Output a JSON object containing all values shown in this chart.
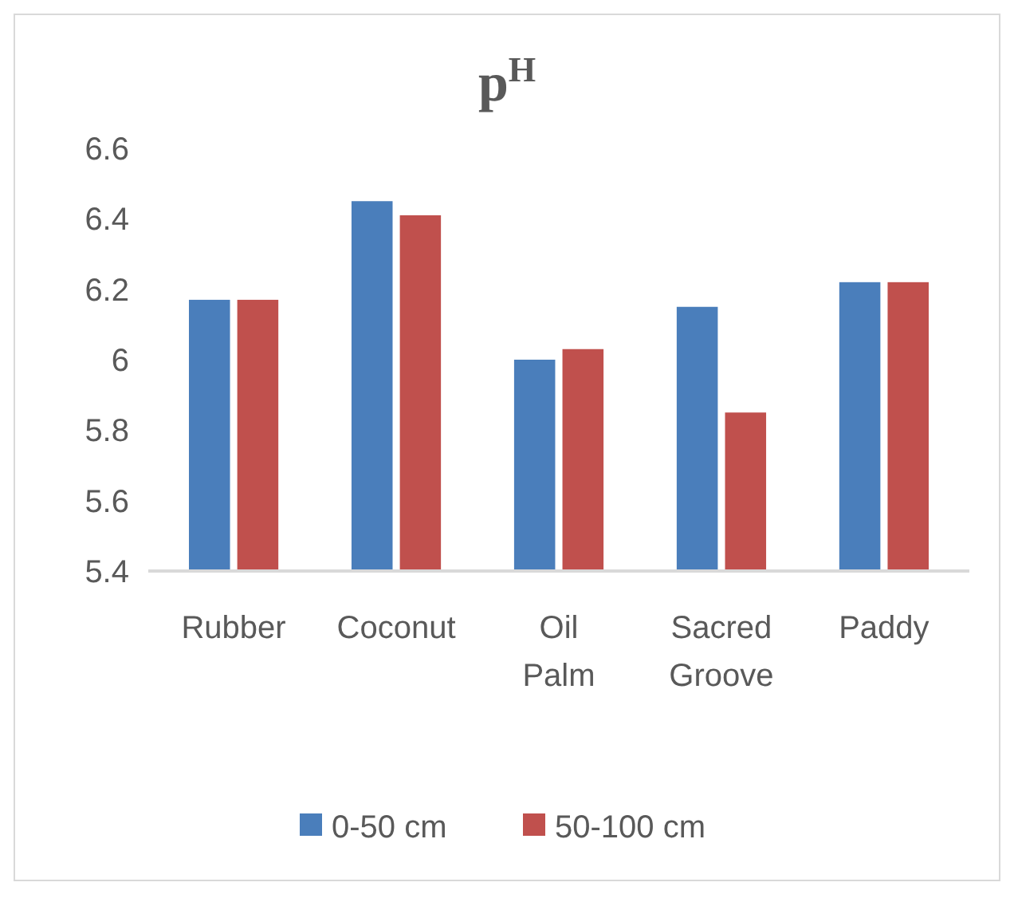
{
  "chart_data": {
    "type": "bar",
    "title": "p$^{H}$",
    "categories": [
      "Rubber",
      "Coconut",
      "Oil Palm",
      "Sacred Groove",
      "Paddy"
    ],
    "series": [
      {
        "name": "0-50 cm",
        "color": "#4a7ebb",
        "values": [
          6.17,
          6.45,
          6.0,
          6.15,
          6.22
        ]
      },
      {
        "name": "50-100 cm",
        "color": "#c0504d",
        "values": [
          6.17,
          6.41,
          6.03,
          5.85,
          6.22
        ]
      }
    ],
    "ylim": [
      5.4,
      6.6
    ],
    "yticks": [
      {
        "value": 5.4,
        "label": "5.4"
      },
      {
        "value": 5.6,
        "label": "5.6"
      },
      {
        "value": 5.8,
        "label": "5.8"
      },
      {
        "value": 6,
        "label": "6"
      },
      {
        "value": 6.2,
        "label": "6.2"
      },
      {
        "value": 6.4,
        "label": "6.4"
      },
      {
        "value": 6.6,
        "label": "6.6"
      }
    ],
    "grid": false,
    "legend": "bottom"
  }
}
